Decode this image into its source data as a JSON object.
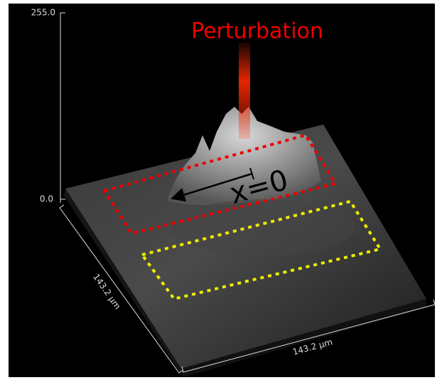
{
  "axes": {
    "z_max": "255.0",
    "z_min": "0.0",
    "y_extent": "143.2 µm",
    "x_extent": "143.2 µm"
  },
  "annotations": {
    "perturbation": "Perturbation",
    "origin": "x=0"
  }
}
